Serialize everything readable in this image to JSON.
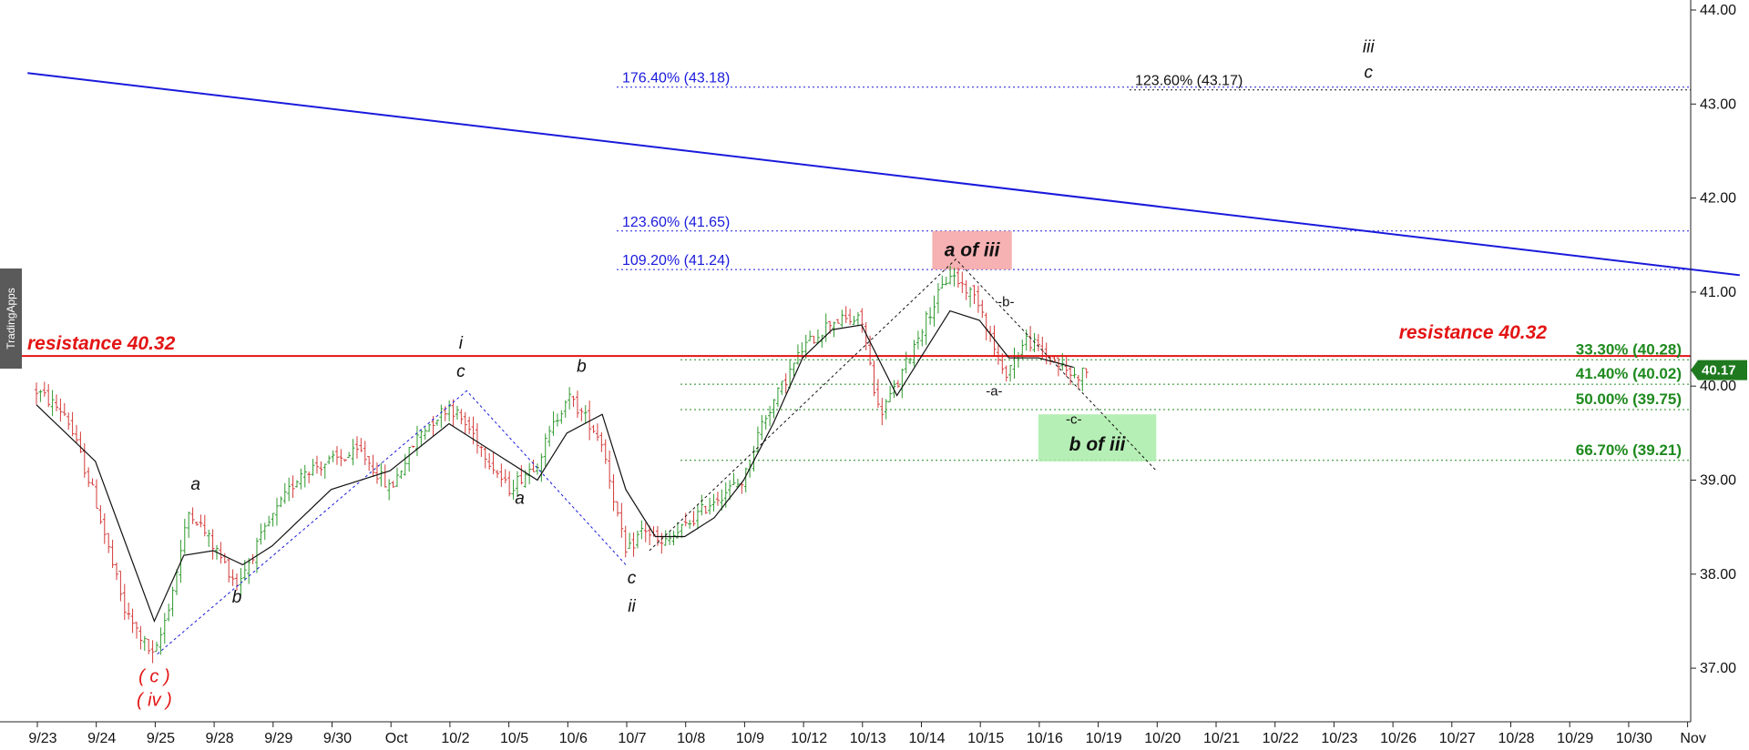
{
  "watermark": "TradingApps",
  "chart_data": {
    "type": "candlestick",
    "ylim": [
      36.4,
      44.0
    ],
    "y_ticks": [
      37.0,
      38.0,
      39.0,
      40.0,
      41.0,
      42.0,
      43.0,
      44.0
    ],
    "y_tick_labels": [
      "37.00",
      "38.00",
      "39.00",
      "40.00",
      "41.00",
      "42.00",
      "43.00",
      "44.00"
    ],
    "x_tick_labels": [
      "9/23",
      "9/24",
      "9/25",
      "9/28",
      "9/29",
      "9/30",
      "Oct",
      "10/2",
      "10/5",
      "10/6",
      "10/7",
      "10/8",
      "10/9",
      "10/12",
      "10/13",
      "10/14",
      "10/15",
      "10/16",
      "10/19",
      "10/20",
      "10/21",
      "10/22",
      "10/23",
      "10/26",
      "10/27",
      "10/28",
      "10/29",
      "10/30",
      "Nov"
    ],
    "last_price": 40.17,
    "last_price_label": "40.17",
    "price_path": [
      {
        "t": 0,
        "p": 39.95
      },
      {
        "t": 0.5,
        "p": 39.7
      },
      {
        "t": 1,
        "p": 38.8
      },
      {
        "t": 1.5,
        "p": 37.6
      },
      {
        "t": 2,
        "p": 37.1
      },
      {
        "t": 2.3,
        "p": 37.8
      },
      {
        "t": 2.6,
        "p": 38.7
      },
      {
        "t": 3,
        "p": 38.3
      },
      {
        "t": 3.4,
        "p": 37.9
      },
      {
        "t": 4,
        "p": 38.6
      },
      {
        "t": 4.5,
        "p": 39.1
      },
      {
        "t": 5,
        "p": 39.2
      },
      {
        "t": 5.5,
        "p": 39.3
      },
      {
        "t": 6,
        "p": 38.9
      },
      {
        "t": 6.5,
        "p": 39.5
      },
      {
        "t": 7,
        "p": 39.8
      },
      {
        "t": 7.4,
        "p": 39.5
      },
      {
        "t": 8,
        "p": 38.9
      },
      {
        "t": 8.5,
        "p": 39.2
      },
      {
        "t": 9,
        "p": 39.9
      },
      {
        "t": 9.4,
        "p": 39.6
      },
      {
        "t": 9.6,
        "p": 39.4
      },
      {
        "t": 10,
        "p": 38.2
      },
      {
        "t": 10.3,
        "p": 38.5
      },
      {
        "t": 10.6,
        "p": 38.3
      },
      {
        "t": 11,
        "p": 38.5
      },
      {
        "t": 11.5,
        "p": 38.8
      },
      {
        "t": 12,
        "p": 39.0
      },
      {
        "t": 12.3,
        "p": 39.6
      },
      {
        "t": 13,
        "p": 40.4
      },
      {
        "t": 13.5,
        "p": 40.7
      },
      {
        "t": 14,
        "p": 40.7
      },
      {
        "t": 14.3,
        "p": 39.7
      },
      {
        "t": 14.6,
        "p": 40.0
      },
      {
        "t": 15,
        "p": 40.6
      },
      {
        "t": 15.5,
        "p": 41.2
      },
      {
        "t": 16,
        "p": 40.9
      },
      {
        "t": 16.4,
        "p": 40.1
      },
      {
        "t": 16.8,
        "p": 40.5
      },
      {
        "t": 17.2,
        "p": 40.3
      },
      {
        "t": 17.6,
        "p": 40.1
      },
      {
        "t": 17.85,
        "p": 40.17
      }
    ],
    "moving_average": [
      {
        "t": 0,
        "p": 39.8
      },
      {
        "t": 1,
        "p": 39.2
      },
      {
        "t": 2,
        "p": 37.5
      },
      {
        "t": 2.5,
        "p": 38.2
      },
      {
        "t": 3,
        "p": 38.25
      },
      {
        "t": 3.5,
        "p": 38.1
      },
      {
        "t": 4,
        "p": 38.3
      },
      {
        "t": 5,
        "p": 38.9
      },
      {
        "t": 6,
        "p": 39.1
      },
      {
        "t": 7,
        "p": 39.6
      },
      {
        "t": 8,
        "p": 39.2
      },
      {
        "t": 8.5,
        "p": 39.0
      },
      {
        "t": 9,
        "p": 39.5
      },
      {
        "t": 9.6,
        "p": 39.7
      },
      {
        "t": 10,
        "p": 38.9
      },
      {
        "t": 10.5,
        "p": 38.4
      },
      {
        "t": 11,
        "p": 38.4
      },
      {
        "t": 11.5,
        "p": 38.6
      },
      {
        "t": 12,
        "p": 39.0
      },
      {
        "t": 12.5,
        "p": 39.6
      },
      {
        "t": 13,
        "p": 40.3
      },
      {
        "t": 13.5,
        "p": 40.6
      },
      {
        "t": 14,
        "p": 40.65
      },
      {
        "t": 14.6,
        "p": 39.9
      },
      {
        "t": 15,
        "p": 40.3
      },
      {
        "t": 15.5,
        "p": 40.8
      },
      {
        "t": 16,
        "p": 40.7
      },
      {
        "t": 16.5,
        "p": 40.3
      },
      {
        "t": 17,
        "p": 40.3
      },
      {
        "t": 17.6,
        "p": 40.2
      }
    ],
    "trendline": {
      "from": {
        "t": -0.15,
        "p": 43.33
      },
      "to": {
        "t": 28.9,
        "p": 41.18
      }
    },
    "resistance": {
      "value": 40.32,
      "label": "resistance 40.32"
    },
    "fib_levels_blue": [
      {
        "value": 43.18,
        "label": "176.40% (43.18)"
      },
      {
        "value": 41.65,
        "label": "123.60% (41.65)"
      },
      {
        "value": 41.24,
        "label": "109.20% (41.24)"
      }
    ],
    "fib_level_black": {
      "value": 43.17,
      "label": "123.60% (43.17)"
    },
    "fib_levels_green": [
      {
        "value": 40.28,
        "label": "33.30% (40.28)"
      },
      {
        "value": 40.02,
        "label": "41.40% (40.02)"
      },
      {
        "value": 39.75,
        "label": "50.00% (39.75)"
      },
      {
        "value": 39.21,
        "label": "66.70% (39.21)"
      }
    ],
    "wave_labels": [
      {
        "text": "a",
        "t": 2.7,
        "p": 38.9,
        "style": "black"
      },
      {
        "text": "b",
        "t": 3.4,
        "p": 37.7,
        "style": "black"
      },
      {
        "text": "( c )",
        "t": 2.0,
        "p": 36.85,
        "style": "red"
      },
      {
        "text": "( iv )",
        "t": 2.0,
        "p": 36.6,
        "style": "red"
      },
      {
        "text": "i",
        "t": 7.2,
        "p": 40.4,
        "style": "black"
      },
      {
        "text": "c",
        "t": 7.2,
        "p": 40.1,
        "style": "black"
      },
      {
        "text": "a",
        "t": 8.2,
        "p": 38.75,
        "style": "black"
      },
      {
        "text": "b",
        "t": 9.25,
        "p": 40.15,
        "style": "black"
      },
      {
        "text": "c",
        "t": 10.1,
        "p": 37.9,
        "style": "black"
      },
      {
        "text": "ii",
        "t": 10.1,
        "p": 37.6,
        "style": "black"
      },
      {
        "text": "iii",
        "t": 22.6,
        "p": 43.55,
        "style": "black"
      },
      {
        "text": "c",
        "t": 22.6,
        "p": 43.28,
        "style": "black"
      },
      {
        "text": "-b-",
        "t": 16.45,
        "p": 40.85,
        "style": "small"
      },
      {
        "text": "-a-",
        "t": 16.25,
        "p": 39.9,
        "style": "small"
      },
      {
        "text": "-c-",
        "t": 17.6,
        "p": 39.6,
        "style": "small"
      }
    ],
    "boxes": [
      {
        "label": "a of iii",
        "t1": 15.2,
        "t2": 16.55,
        "p1": 41.24,
        "p2": 41.65,
        "fill": "#f5a3a6",
        "label_p": 41.45
      },
      {
        "label": "b of iii",
        "t1": 17.0,
        "t2": 19.0,
        "p1": 39.2,
        "p2": 39.7,
        "fill": "#a8eca8",
        "label_p": 39.38
      }
    ],
    "dotted_lines_blue": [
      [
        {
          "t": 2.05,
          "p": 37.15
        },
        {
          "t": 7.3,
          "p": 39.95
        },
        {
          "t": 10.0,
          "p": 38.1
        }
      ]
    ],
    "dotted_lines_black": [
      [
        {
          "t": 10.4,
          "p": 38.25
        },
        {
          "t": 15.6,
          "p": 41.35
        },
        {
          "t": 19.0,
          "p": 39.1
        }
      ]
    ],
    "colors": {
      "up": "#2f9a2f",
      "down": "#d43a3a",
      "ma": "#111111",
      "trendline": "#1a1adc",
      "resistance": "#e31414",
      "price_tag": "#1f7a1f"
    }
  }
}
